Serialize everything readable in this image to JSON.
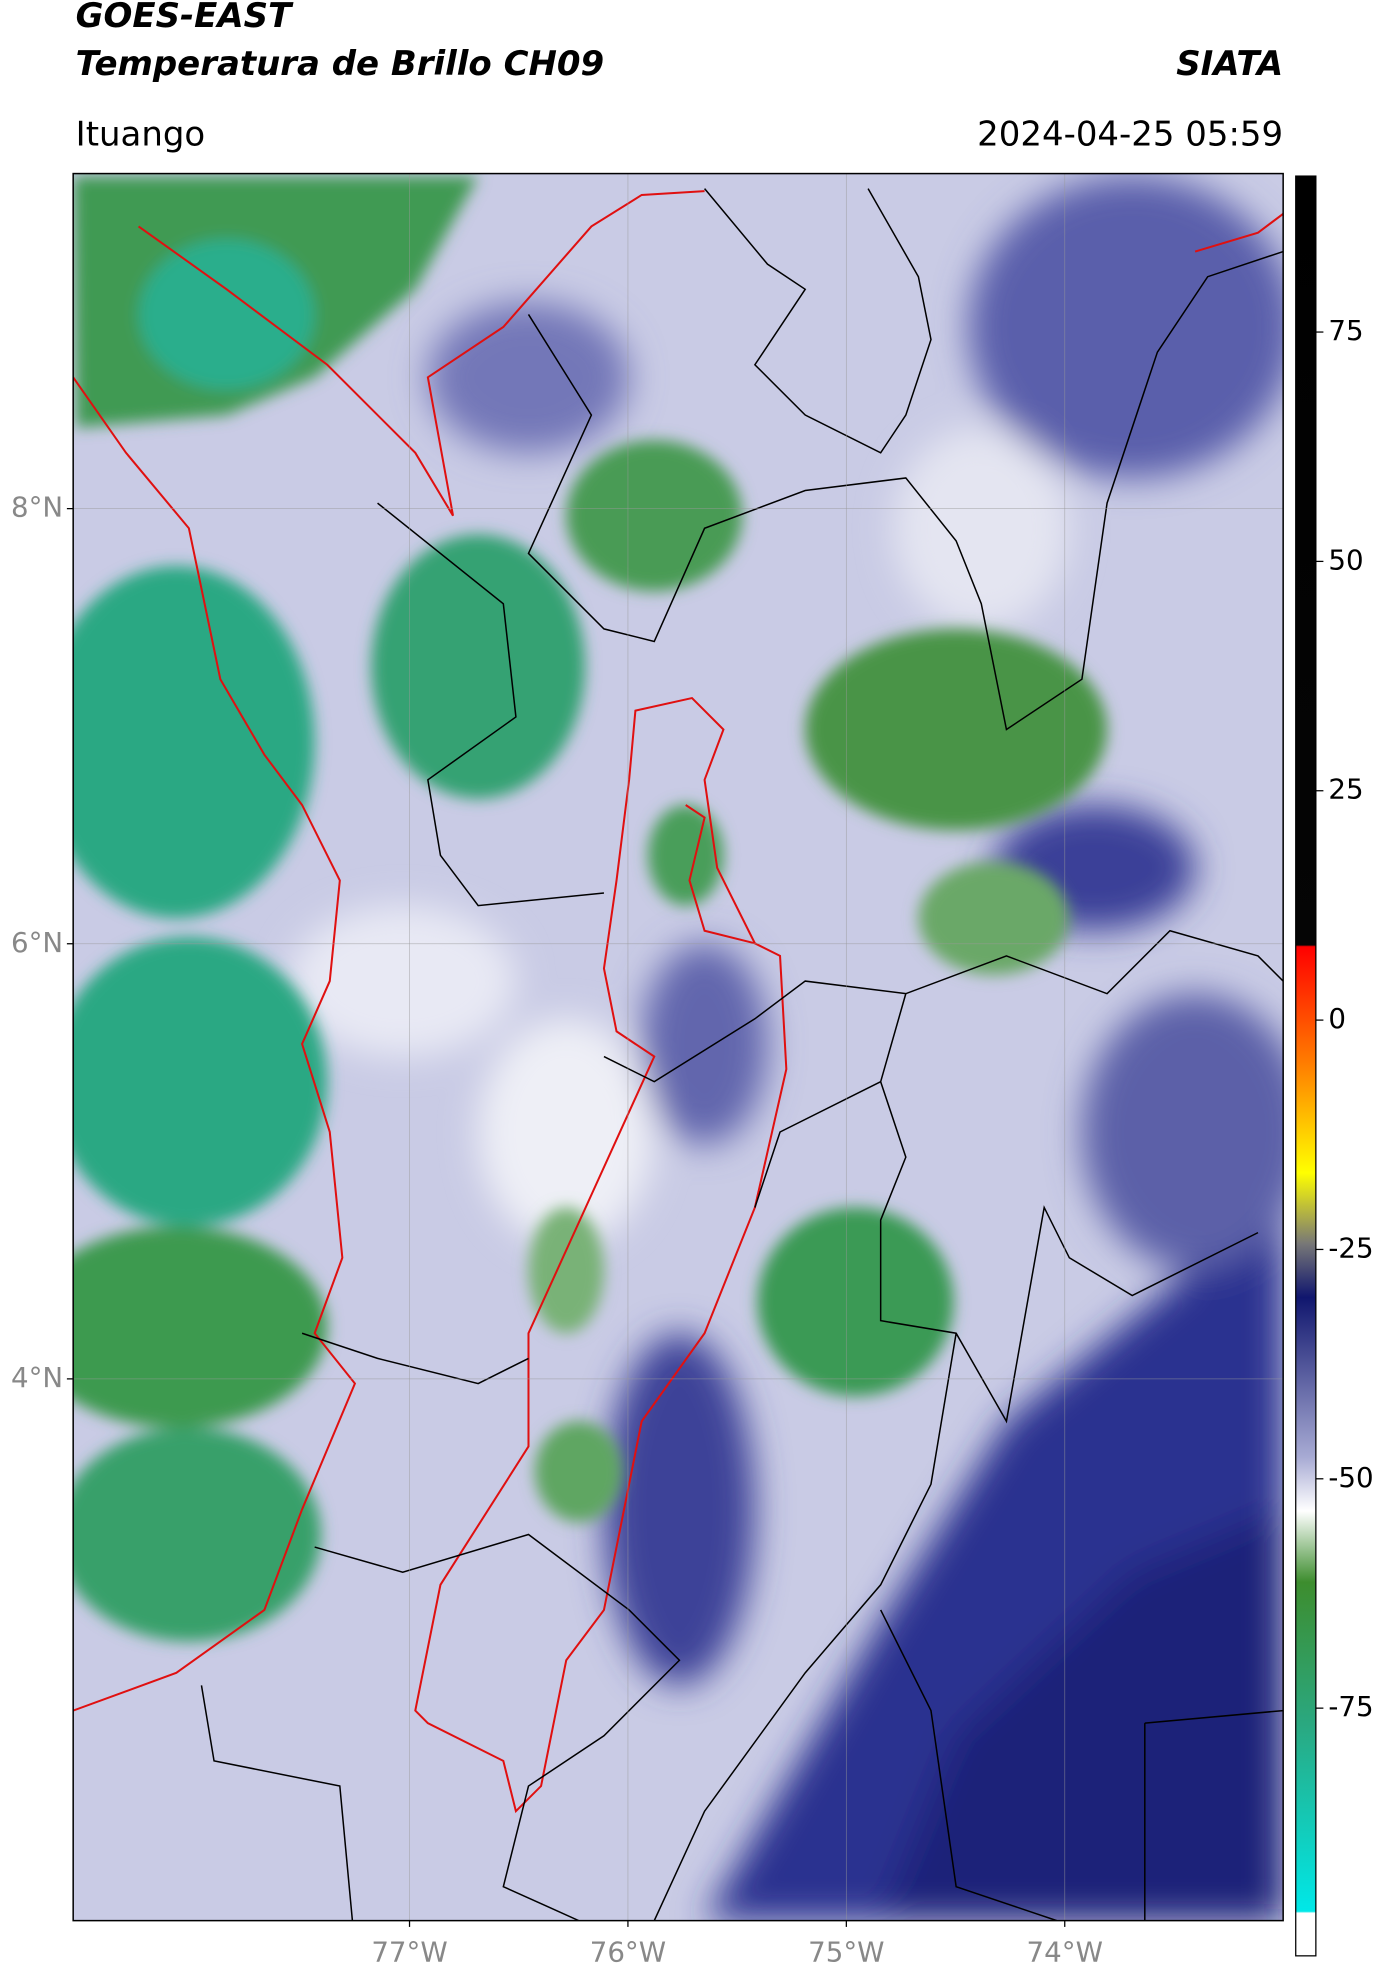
{
  "header": {
    "title": "GOES-EAST",
    "subtitle": "Temperatura de Brillo CH09",
    "org": "SIATA",
    "location": "Ituango",
    "timestamp": "2024-04-25 05:59"
  },
  "map": {
    "lat_range": [
      1.51,
      9.54
    ],
    "lon_range": [
      -78.54,
      -73.0
    ],
    "grid": true,
    "lat_ticks": [
      {
        "value": 8,
        "label": "8°N"
      },
      {
        "value": 6,
        "label": "6°N"
      },
      {
        "value": 4,
        "label": "4°N"
      }
    ],
    "lon_ticks": [
      {
        "value": -77,
        "label": "77°W"
      },
      {
        "value": -76,
        "label": "76°W"
      },
      {
        "value": -75,
        "label": "75°W"
      },
      {
        "value": -74,
        "label": "74°W"
      }
    ]
  },
  "colorbar": {
    "range": [
      -102,
      92
    ],
    "ticks": [
      75,
      50,
      25,
      0,
      -25,
      -50,
      -75
    ]
  }
}
